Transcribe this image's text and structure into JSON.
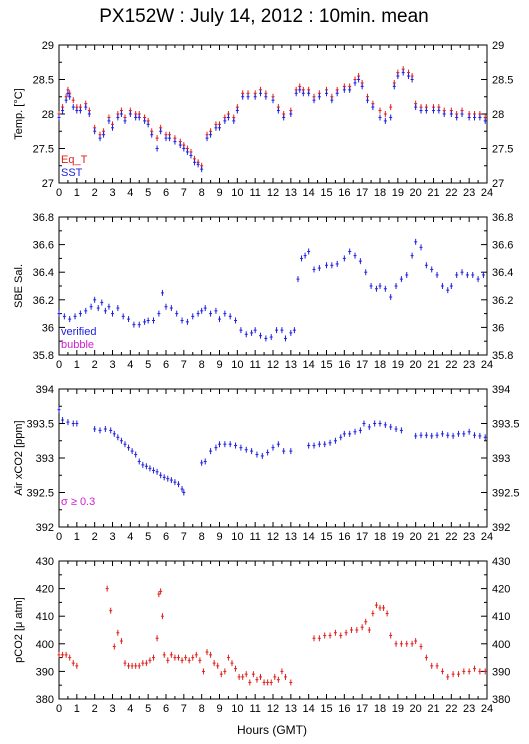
{
  "title": "PX152W : July 14, 2012 : 10min. mean",
  "xlabel": "Hours (GMT)",
  "colors": {
    "red": "#e0201a",
    "blue": "#2020e0",
    "magenta": "#d020d0",
    "axis": "#000000"
  },
  "chart_data": [
    {
      "type": "scatter",
      "name": "temperature",
      "ylabel": "Temp. [°C]",
      "xlim": [
        0,
        24
      ],
      "ylim": [
        27,
        29
      ],
      "xticks": [
        "0",
        "1",
        "2",
        "3",
        "4",
        "5",
        "6",
        "7",
        "8",
        "9",
        "10",
        "11",
        "12",
        "13",
        "14",
        "15",
        "16",
        "17",
        "18",
        "19",
        "20",
        "21",
        "22",
        "23",
        "24"
      ],
      "yticks": [
        "27",
        "27.5",
        "28",
        "28.5",
        "29"
      ],
      "legend": [
        "Eq_T",
        "SST"
      ],
      "legend_position": "bottom-left",
      "series": [
        {
          "name": "Eq_T",
          "color": "#e0201a",
          "x": [
            0.0,
            0.2,
            0.4,
            0.5,
            0.6,
            0.8,
            1.0,
            1.2,
            1.5,
            1.7,
            2.0,
            2.3,
            2.5,
            2.8,
            3.0,
            3.3,
            3.5,
            3.7,
            4.0,
            4.3,
            4.5,
            4.8,
            5.0,
            5.2,
            5.5,
            5.7,
            6.0,
            6.2,
            6.5,
            6.8,
            7.0,
            7.2,
            7.4,
            7.6,
            7.8,
            8.0,
            8.3,
            8.5,
            8.8,
            9.0,
            9.3,
            9.5,
            9.8,
            10.0,
            10.3,
            10.6,
            11.0,
            11.3,
            11.6,
            12.0,
            12.3,
            12.6,
            13.0,
            13.3,
            13.5,
            13.7,
            14.0,
            14.3,
            14.6,
            15.0,
            15.3,
            15.6,
            16.0,
            16.3,
            16.6,
            16.8,
            17.0,
            17.3,
            17.6,
            18.0,
            18.3,
            18.6,
            18.8,
            19.0,
            19.3,
            19.6,
            19.8,
            20.0,
            20.3,
            20.6,
            21.0,
            21.3,
            21.6,
            22.0,
            22.3,
            22.6,
            23.0,
            23.3,
            23.6,
            23.9
          ],
          "y": [
            28.0,
            28.1,
            28.25,
            28.35,
            28.3,
            28.2,
            28.1,
            28.1,
            28.15,
            28.05,
            27.8,
            27.7,
            27.75,
            27.95,
            27.85,
            28.0,
            28.05,
            27.95,
            28.05,
            28.0,
            28.0,
            27.95,
            27.9,
            27.75,
            27.65,
            27.8,
            27.7,
            27.7,
            27.65,
            27.6,
            27.55,
            27.5,
            27.45,
            27.35,
            27.3,
            27.25,
            27.7,
            27.75,
            27.85,
            27.85,
            27.95,
            28.0,
            27.95,
            28.1,
            28.3,
            28.3,
            28.3,
            28.35,
            28.3,
            28.25,
            28.1,
            28.0,
            28.05,
            28.35,
            28.4,
            28.35,
            28.35,
            28.25,
            28.3,
            28.35,
            28.25,
            28.35,
            28.4,
            28.4,
            28.5,
            28.55,
            28.45,
            28.25,
            28.15,
            28.05,
            28.0,
            28.1,
            28.45,
            28.6,
            28.65,
            28.6,
            28.55,
            28.15,
            28.1,
            28.1,
            28.1,
            28.1,
            28.05,
            28.05,
            28.0,
            28.05,
            28.0,
            28.0,
            28.0,
            27.95
          ]
        },
        {
          "name": "SST",
          "color": "#2020e0",
          "x": [
            0.0,
            0.2,
            0.4,
            0.5,
            0.6,
            0.8,
            1.0,
            1.2,
            1.5,
            1.7,
            2.0,
            2.3,
            2.5,
            2.8,
            3.0,
            3.3,
            3.5,
            3.7,
            4.0,
            4.3,
            4.5,
            4.8,
            5.0,
            5.2,
            5.5,
            5.7,
            6.0,
            6.2,
            6.5,
            6.8,
            7.0,
            7.2,
            7.4,
            7.6,
            7.8,
            8.0,
            8.3,
            8.5,
            8.8,
            9.0,
            9.3,
            9.5,
            9.8,
            10.0,
            10.3,
            10.6,
            11.0,
            11.3,
            11.6,
            12.0,
            12.3,
            12.6,
            13.0,
            13.3,
            13.5,
            13.7,
            14.0,
            14.3,
            14.6,
            15.0,
            15.3,
            15.6,
            16.0,
            16.3,
            16.6,
            16.8,
            17.0,
            17.3,
            17.6,
            18.0,
            18.3,
            18.6,
            18.8,
            19.0,
            19.3,
            19.6,
            19.8,
            20.0,
            20.3,
            20.6,
            21.0,
            21.3,
            21.6,
            22.0,
            22.3,
            22.6,
            23.0,
            23.3,
            23.6,
            23.9
          ],
          "y": [
            27.95,
            28.05,
            28.2,
            28.3,
            28.25,
            28.1,
            28.05,
            28.05,
            28.1,
            28.0,
            27.75,
            27.65,
            27.7,
            27.9,
            27.8,
            27.95,
            28.0,
            27.9,
            28.0,
            27.95,
            27.95,
            27.9,
            27.85,
            27.7,
            27.5,
            27.75,
            27.65,
            27.65,
            27.6,
            27.55,
            27.5,
            27.45,
            27.4,
            27.3,
            27.27,
            27.2,
            27.65,
            27.7,
            27.8,
            27.8,
            27.9,
            27.95,
            27.9,
            28.05,
            28.25,
            28.25,
            28.25,
            28.3,
            28.25,
            28.2,
            28.05,
            27.95,
            28.0,
            28.3,
            28.35,
            28.3,
            28.3,
            28.2,
            28.25,
            28.3,
            28.2,
            28.3,
            28.35,
            28.35,
            28.45,
            28.5,
            28.4,
            28.2,
            28.1,
            27.95,
            27.9,
            27.95,
            28.4,
            28.55,
            28.6,
            28.55,
            28.5,
            28.1,
            28.05,
            28.05,
            28.05,
            28.05,
            28.0,
            28.0,
            27.95,
            28.0,
            27.95,
            27.95,
            27.95,
            27.9
          ]
        }
      ]
    },
    {
      "type": "scatter",
      "name": "salinity",
      "ylabel": "SBE Sal.",
      "xlim": [
        0,
        24
      ],
      "ylim": [
        35.8,
        36.8
      ],
      "xticks": [
        "0",
        "1",
        "2",
        "3",
        "4",
        "5",
        "6",
        "7",
        "8",
        "9",
        "10",
        "11",
        "12",
        "13",
        "14",
        "15",
        "16",
        "17",
        "18",
        "19",
        "20",
        "21",
        "22",
        "23",
        "24"
      ],
      "yticks": [
        "35.8",
        "36",
        "36.2",
        "36.4",
        "36.6",
        "36.8"
      ],
      "legend": [
        "verified",
        "bubble"
      ],
      "legend_position": "bottom-left",
      "series": [
        {
          "name": "verified",
          "color": "#2020e0",
          "x": [
            0.0,
            0.3,
            0.6,
            0.9,
            1.2,
            1.5,
            1.8,
            2.0,
            2.2,
            2.4,
            2.6,
            2.8,
            3.0,
            3.3,
            3.6,
            3.9,
            4.2,
            4.5,
            4.8,
            5.0,
            5.3,
            5.6,
            5.8,
            6.0,
            6.3,
            6.6,
            6.9,
            7.2,
            7.5,
            7.8,
            8.0,
            8.2,
            8.5,
            8.8,
            9.0,
            9.3,
            9.6,
            9.9,
            10.2,
            10.5,
            10.8,
            11.0,
            11.3,
            11.6,
            11.9,
            12.2,
            12.5,
            12.7,
            13.0,
            13.2,
            13.4,
            13.6,
            13.8,
            14.0,
            14.3,
            14.6,
            15.0,
            15.3,
            15.6,
            16.0,
            16.3,
            16.6,
            16.9,
            17.2,
            17.5,
            17.8,
            18.0,
            18.3,
            18.6,
            18.9,
            19.2,
            19.5,
            19.8,
            20.0,
            20.3,
            20.6,
            20.9,
            21.2,
            21.5,
            21.8,
            22.0,
            22.3,
            22.6,
            22.9,
            23.2,
            23.5,
            23.8
          ],
          "y": [
            36.1,
            36.08,
            36.06,
            36.08,
            36.1,
            36.12,
            36.15,
            36.2,
            36.14,
            36.18,
            36.12,
            36.15,
            36.1,
            36.14,
            36.08,
            36.06,
            36.02,
            36.02,
            36.04,
            36.05,
            36.05,
            36.1,
            36.25,
            36.15,
            36.14,
            36.1,
            36.05,
            36.04,
            36.08,
            36.1,
            36.12,
            36.14,
            36.1,
            36.12,
            36.06,
            36.1,
            36.08,
            36.05,
            35.98,
            35.95,
            35.96,
            35.98,
            35.94,
            35.92,
            35.93,
            35.98,
            35.98,
            35.92,
            35.96,
            35.98,
            36.35,
            36.5,
            36.52,
            36.55,
            36.42,
            36.43,
            36.45,
            36.45,
            36.46,
            36.5,
            36.55,
            36.52,
            36.48,
            36.4,
            36.3,
            36.28,
            36.3,
            36.28,
            36.22,
            36.3,
            36.35,
            36.38,
            36.52,
            36.62,
            36.58,
            36.45,
            36.42,
            36.38,
            36.3,
            36.27,
            36.3,
            36.38,
            36.4,
            36.38,
            36.38,
            36.35,
            36.38
          ]
        }
      ]
    },
    {
      "type": "scatter",
      "name": "air_xco2",
      "ylabel": "Air xCO2 [ppm]",
      "xlim": [
        0,
        24
      ],
      "ylim": [
        392,
        394
      ],
      "xticks": [
        "0",
        "1",
        "2",
        "3",
        "4",
        "5",
        "6",
        "7",
        "8",
        "9",
        "10",
        "11",
        "12",
        "13",
        "14",
        "15",
        "16",
        "17",
        "18",
        "19",
        "20",
        "21",
        "22",
        "23",
        "24"
      ],
      "yticks": [
        "392",
        "392.5",
        "393",
        "393.5",
        "394"
      ],
      "annotation": "σ ≥ 0.3",
      "series": [
        {
          "name": "Air xCO2",
          "color": "#2020e0",
          "x": [
            0.0,
            0.2,
            0.5,
            0.8,
            1.0,
            2.0,
            2.3,
            2.6,
            2.9,
            3.1,
            3.3,
            3.5,
            3.7,
            3.9,
            4.1,
            4.3,
            4.5,
            4.7,
            4.9,
            5.1,
            5.3,
            5.5,
            5.7,
            5.9,
            6.1,
            6.3,
            6.5,
            6.7,
            6.9,
            7.0,
            8.0,
            8.2,
            8.5,
            8.8,
            9.0,
            9.3,
            9.6,
            9.9,
            10.2,
            10.5,
            10.8,
            11.1,
            11.4,
            11.7,
            12.0,
            12.3,
            12.6,
            13.0,
            14.0,
            14.3,
            14.6,
            14.9,
            15.2,
            15.5,
            15.8,
            16.0,
            16.3,
            16.6,
            16.9,
            17.1,
            17.4,
            17.7,
            18.0,
            18.3,
            18.6,
            18.9,
            19.2,
            20.0,
            20.3,
            20.6,
            20.9,
            21.2,
            21.5,
            21.8,
            22.1,
            22.4,
            22.7,
            23.0,
            23.3,
            23.6,
            23.9
          ],
          "y": [
            393.7,
            393.55,
            393.52,
            393.5,
            393.5,
            393.42,
            393.4,
            393.42,
            393.4,
            393.35,
            393.3,
            393.25,
            393.2,
            393.15,
            393.1,
            393.05,
            392.95,
            392.9,
            392.88,
            392.85,
            392.82,
            392.8,
            392.75,
            392.72,
            392.7,
            392.68,
            392.65,
            392.62,
            392.55,
            392.5,
            392.93,
            392.95,
            393.1,
            393.15,
            393.2,
            393.2,
            393.2,
            393.18,
            393.15,
            393.12,
            393.1,
            393.05,
            393.03,
            393.08,
            393.15,
            393.2,
            393.1,
            393.1,
            393.18,
            393.18,
            393.2,
            393.2,
            393.22,
            393.25,
            393.3,
            393.35,
            393.35,
            393.38,
            393.4,
            393.5,
            393.45,
            393.5,
            393.5,
            393.48,
            393.45,
            393.42,
            393.4,
            393.32,
            393.33,
            393.33,
            393.32,
            393.33,
            393.35,
            393.33,
            393.32,
            393.35,
            393.35,
            393.38,
            393.33,
            393.32,
            393.3
          ]
        }
      ]
    },
    {
      "type": "scatter",
      "name": "pco2",
      "ylabel": "pCO2 [μ atm]",
      "xlim": [
        0,
        24
      ],
      "ylim": [
        380,
        430
      ],
      "xticks": [
        "0",
        "1",
        "2",
        "3",
        "4",
        "5",
        "6",
        "7",
        "8",
        "9",
        "10",
        "11",
        "12",
        "13",
        "14",
        "15",
        "16",
        "17",
        "18",
        "19",
        "20",
        "21",
        "22",
        "23",
        "24"
      ],
      "yticks": [
        "380",
        "390",
        "400",
        "410",
        "420",
        "430"
      ],
      "series": [
        {
          "name": "pCO2",
          "color": "#e0201a",
          "x": [
            0.0,
            0.2,
            0.4,
            0.6,
            0.8,
            1.0,
            2.7,
            2.9,
            3.1,
            3.3,
            3.5,
            3.7,
            3.9,
            4.1,
            4.3,
            4.5,
            4.7,
            4.9,
            5.1,
            5.3,
            5.5,
            5.6,
            5.7,
            5.8,
            5.9,
            6.1,
            6.3,
            6.5,
            6.7,
            6.9,
            7.1,
            7.3,
            7.5,
            7.7,
            7.9,
            8.1,
            8.3,
            8.5,
            8.7,
            8.9,
            9.1,
            9.3,
            9.5,
            9.7,
            9.9,
            10.1,
            10.3,
            10.5,
            10.7,
            10.9,
            11.1,
            11.3,
            11.5,
            11.7,
            11.9,
            12.1,
            12.3,
            12.5,
            12.7,
            13.0,
            14.3,
            14.6,
            14.9,
            15.2,
            15.5,
            15.8,
            16.1,
            16.4,
            16.7,
            17.0,
            17.2,
            17.4,
            17.6,
            17.8,
            18.0,
            18.2,
            18.4,
            18.6,
            18.9,
            19.2,
            19.5,
            19.8,
            20.0,
            20.3,
            20.6,
            20.9,
            21.2,
            21.5,
            21.8,
            22.1,
            22.4,
            22.7,
            23.0,
            23.3,
            23.6,
            23.9
          ],
          "y": [
            396,
            396,
            396,
            395,
            393,
            392,
            420,
            412,
            399,
            404,
            401,
            393,
            392,
            392,
            392,
            392,
            393,
            393,
            394,
            395,
            402,
            418,
            419,
            410,
            396,
            394,
            396,
            395,
            395,
            394,
            395,
            394,
            395,
            396,
            394,
            390,
            397,
            396,
            393,
            392,
            389,
            390,
            395,
            393,
            391,
            388,
            388,
            389,
            386,
            389,
            387,
            388,
            386,
            386,
            386,
            388,
            387,
            390,
            388,
            386,
            402,
            402,
            403,
            403,
            404,
            403,
            404,
            405,
            405,
            406,
            408,
            405,
            411,
            414,
            413,
            413,
            411,
            403,
            400,
            400,
            400,
            400,
            401,
            399,
            395,
            392,
            392,
            390,
            388,
            389,
            389,
            390,
            390,
            391,
            390,
            390
          ]
        }
      ]
    }
  ]
}
